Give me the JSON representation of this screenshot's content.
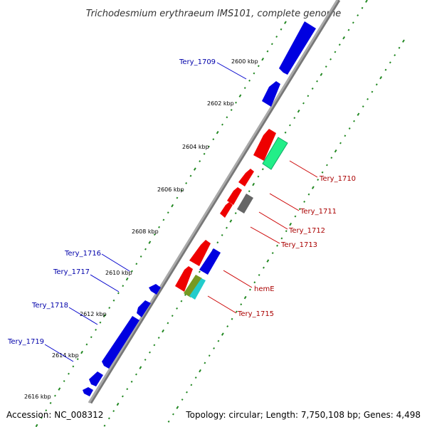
{
  "title": "Trichodesmium erythraeum IMS101, complete genome",
  "accession_label": "Accession: NC_008312",
  "summary_label": "Topology: circular; Length: 7,750,108 bp; Genes: 4,498",
  "colors": {
    "reverse_gene": "#0000e0",
    "forward_gene": "#ee0000",
    "label_blue": "#0000aa",
    "label_red": "#aa0000",
    "green_gene": "#22ee88",
    "gray_gene": "#666666",
    "olive_gene": "#779922",
    "cyan_gene": "#22cccc",
    "tick_dots": "#228822",
    "axis": "#999999"
  },
  "ticks": [
    {
      "label": "2600 kbp"
    },
    {
      "label": "2602 kbp"
    },
    {
      "label": "2604 kbp"
    },
    {
      "label": "2606 kbp"
    },
    {
      "label": "2608 kbp"
    },
    {
      "label": "2610 kbp"
    },
    {
      "label": "2612 kbp"
    },
    {
      "label": "2614 kbp"
    },
    {
      "label": "2616 kbp"
    }
  ],
  "gene_labels": [
    {
      "name": "Tery_1709",
      "strand": "reverse"
    },
    {
      "name": "Tery_1710",
      "strand": "forward"
    },
    {
      "name": "Tery_1711",
      "strand": "forward"
    },
    {
      "name": "Tery_1712",
      "strand": "forward"
    },
    {
      "name": "Tery_1713",
      "strand": "forward"
    },
    {
      "name": "Tery_1716",
      "strand": "reverse"
    },
    {
      "name": "Tery_1717",
      "strand": "reverse"
    },
    {
      "name": "hemE",
      "strand": "forward"
    },
    {
      "name": "Tery_1718",
      "strand": "reverse"
    },
    {
      "name": "Tery_1715",
      "strand": "forward"
    },
    {
      "name": "Tery_1719",
      "strand": "reverse"
    }
  ]
}
